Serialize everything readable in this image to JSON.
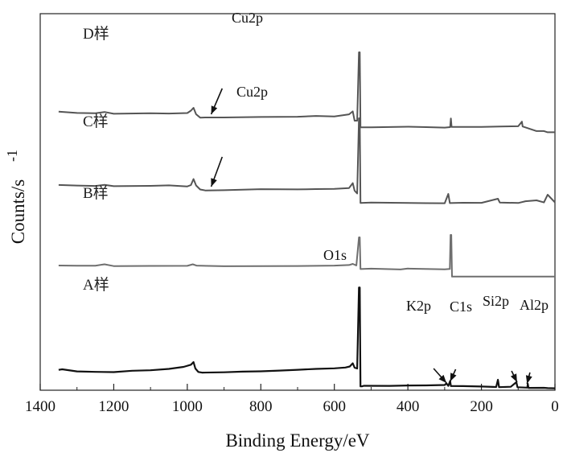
{
  "chart_data": {
    "type": "line",
    "title": "",
    "xlabel": "Binding Energy/eV",
    "ylabel": "Counts/s",
    "ylabel_superscript": "-1",
    "xlim": [
      1400,
      0
    ],
    "x_reversed": true,
    "y_ticks_shown": false,
    "grid": false,
    "x_ticks": [
      1400,
      1200,
      1000,
      800,
      600,
      400,
      200,
      0
    ],
    "series": [
      {
        "name": "A样",
        "color": "#111111",
        "points": [
          [
            1350,
            25.3
          ],
          [
            1340,
            26.0
          ],
          [
            1300,
            23.4
          ],
          [
            1250,
            22.8
          ],
          [
            1200,
            22.5
          ],
          [
            1150,
            24.2
          ],
          [
            1100,
            24.8
          ],
          [
            1050,
            26.5
          ],
          [
            1010,
            29.0
          ],
          [
            990,
            31.7
          ],
          [
            983,
            35.0
          ],
          [
            978,
            27.0
          ],
          [
            970,
            22.7
          ],
          [
            960,
            21.9
          ],
          [
            900,
            22.3
          ],
          [
            850,
            23.1
          ],
          [
            800,
            23.5
          ],
          [
            750,
            24.4
          ],
          [
            700,
            25.4
          ],
          [
            650,
            26.5
          ],
          [
            600,
            27.2
          ],
          [
            570,
            28.2
          ],
          [
            558,
            29.5
          ],
          [
            550,
            33.5
          ],
          [
            545,
            28.0
          ],
          [
            538,
            27.0
          ],
          [
            533,
            127.6
          ],
          [
            531,
            127.6
          ],
          [
            529,
            4.8
          ],
          [
            525,
            4.8
          ],
          [
            520,
            5.5
          ],
          [
            450,
            5.4
          ],
          [
            400,
            5.9
          ],
          [
            350,
            6.0
          ],
          [
            300,
            6.5
          ],
          [
            295,
            8.5
          ],
          [
            290,
            5.4
          ],
          [
            285,
            11.5
          ],
          [
            283,
            5.2
          ],
          [
            250,
            5.1
          ],
          [
            200,
            4.6
          ],
          [
            160,
            4.0
          ],
          [
            155,
            13.0
          ],
          [
            152,
            3.8
          ],
          [
            120,
            4.3
          ],
          [
            105,
            10.0
          ],
          [
            102,
            3.7
          ],
          [
            75,
            3.2
          ],
          [
            74,
            8.0
          ],
          [
            72,
            2.9
          ],
          [
            30,
            3.0
          ],
          [
            20,
            2.6
          ],
          [
            0,
            2.4
          ]
        ]
      },
      {
        "name": "B样",
        "color": "#6f6f6f",
        "points": [
          [
            1350,
            155.0
          ],
          [
            1300,
            154.7
          ],
          [
            1250,
            154.8
          ],
          [
            1225,
            156.5
          ],
          [
            1200,
            154.3
          ],
          [
            1100,
            154.5
          ],
          [
            1000,
            154.6
          ],
          [
            985,
            156.5
          ],
          [
            975,
            154.9
          ],
          [
            900,
            154.1
          ],
          [
            800,
            154.3
          ],
          [
            700,
            154.4
          ],
          [
            600,
            154.9
          ],
          [
            560,
            155.6
          ],
          [
            550,
            157.0
          ],
          [
            540,
            155.1
          ],
          [
            533,
            190.0
          ],
          [
            531,
            190.0
          ],
          [
            529,
            150.6
          ],
          [
            500,
            151.1
          ],
          [
            420,
            150.1
          ],
          [
            400,
            151.2
          ],
          [
            300,
            150.3
          ],
          [
            286,
            150.7
          ],
          [
            284,
            193.0
          ],
          [
            282,
            193.0
          ],
          [
            280,
            141.2
          ],
          [
            200,
            141.2
          ],
          [
            100,
            141.2
          ],
          [
            0,
            141.2
          ]
        ]
      },
      {
        "name": "C样",
        "color": "#555555",
        "points": [
          [
            1350,
            255.1
          ],
          [
            1300,
            254.4
          ],
          [
            1250,
            253.9
          ],
          [
            1225,
            255.2
          ],
          [
            1200,
            253.6
          ],
          [
            1100,
            254.0
          ],
          [
            1050,
            254.6
          ],
          [
            1000,
            253.3
          ],
          [
            990,
            255.0
          ],
          [
            983,
            262.5
          ],
          [
            976,
            254.5
          ],
          [
            965,
            249.5
          ],
          [
            950,
            248.2
          ],
          [
            900,
            248.6
          ],
          [
            800,
            249.9
          ],
          [
            700,
            249.6
          ],
          [
            650,
            250.0
          ],
          [
            600,
            250.3
          ],
          [
            560,
            251.3
          ],
          [
            550,
            257.4
          ],
          [
            545,
            248.0
          ],
          [
            538,
            244.5
          ],
          [
            533,
            338.0
          ],
          [
            531,
            338.0
          ],
          [
            529,
            232.7
          ],
          [
            500,
            233.3
          ],
          [
            350,
            232.5
          ],
          [
            300,
            232.4
          ],
          [
            290,
            244.0
          ],
          [
            286,
            232.6
          ],
          [
            250,
            233.0
          ],
          [
            200,
            232.9
          ],
          [
            155,
            238.0
          ],
          [
            150,
            233.3
          ],
          [
            100,
            232.7
          ],
          [
            80,
            234.9
          ],
          [
            50,
            236.0
          ],
          [
            30,
            233.4
          ],
          [
            20,
            243.0
          ],
          [
            0,
            233.4
          ]
        ]
      },
      {
        "name": "D样",
        "color": "#555555",
        "points": [
          [
            1350,
            346.3
          ],
          [
            1300,
            344.6
          ],
          [
            1250,
            344.3
          ],
          [
            1225,
            345.8
          ],
          [
            1200,
            343.6
          ],
          [
            1100,
            344.3
          ],
          [
            1050,
            343.9
          ],
          [
            1000,
            344.5
          ],
          [
            990,
            347.5
          ],
          [
            983,
            351.0
          ],
          [
            976,
            343.0
          ],
          [
            965,
            338.8
          ],
          [
            950,
            339.0
          ],
          [
            900,
            339.0
          ],
          [
            800,
            339.6
          ],
          [
            700,
            339.9
          ],
          [
            650,
            340.9
          ],
          [
            600,
            340.3
          ],
          [
            560,
            342.9
          ],
          [
            550,
            346.6
          ],
          [
            545,
            335.0
          ],
          [
            538,
            335.0
          ],
          [
            533,
            420.0
          ],
          [
            531,
            420.0
          ],
          [
            529,
            326.8
          ],
          [
            500,
            326.8
          ],
          [
            400,
            327.5
          ],
          [
            350,
            327.0
          ],
          [
            300,
            326.4
          ],
          [
            285,
            327.0
          ],
          [
            283,
            337.8
          ],
          [
            281,
            327.2
          ],
          [
            200,
            327.2
          ],
          [
            150,
            327.8
          ],
          [
            100,
            328.1
          ],
          [
            90,
            333.8
          ],
          [
            88,
            327.8
          ],
          [
            50,
            322.1
          ],
          [
            30,
            322.1
          ],
          [
            20,
            320.6
          ],
          [
            0,
            320.6
          ]
        ]
      }
    ],
    "annotations": [
      {
        "text": "Cu2p",
        "arrow_from": [
          905,
          375
        ],
        "arrow_to": [
          935,
          343
        ]
      },
      {
        "text": "Cu2p",
        "arrow_from": [
          905,
          290
        ],
        "arrow_to": [
          935,
          253
        ]
      },
      {
        "text": "O1s",
        "arrow_from": null,
        "arrow_to": null
      },
      {
        "text": "K2p",
        "arrow_from": [
          330,
          27
        ],
        "arrow_to": [
          295,
          9
        ]
      },
      {
        "text": "C1s",
        "arrow_from": [
          270,
          26
        ],
        "arrow_to": [
          285,
          11
        ]
      },
      {
        "text": "Si2p",
        "arrow_from": [
          118,
          24
        ],
        "arrow_to": [
          103,
          10
        ]
      },
      {
        "text": "Al2p",
        "arrow_from": [
          68,
          22
        ],
        "arrow_to": [
          76,
          8
        ]
      }
    ]
  }
}
